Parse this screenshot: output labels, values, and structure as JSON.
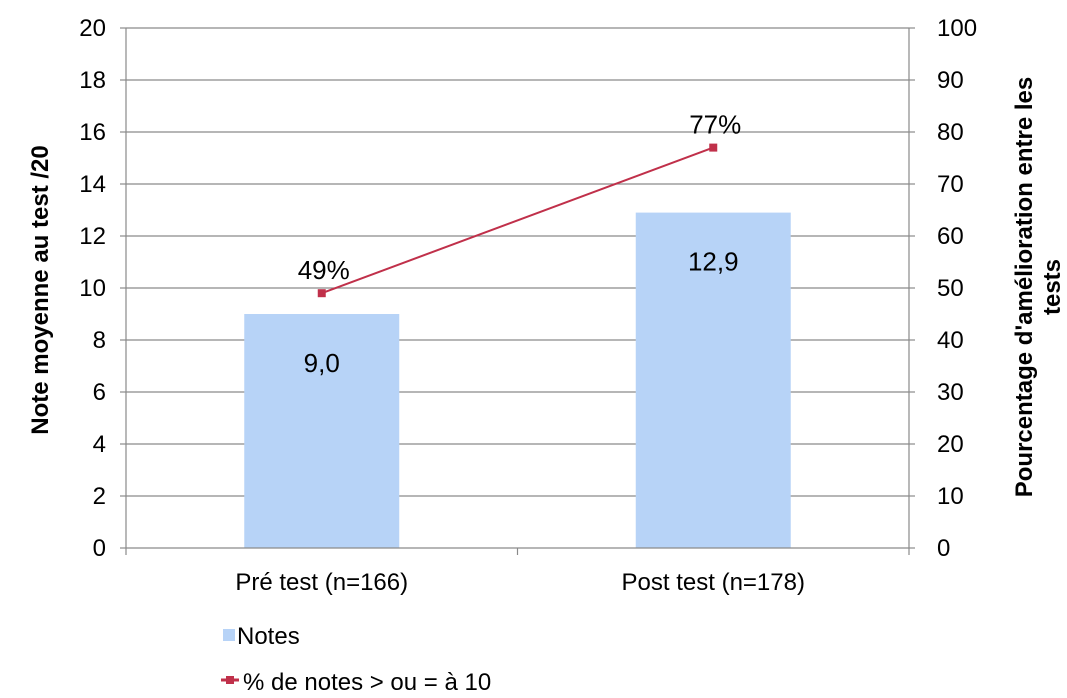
{
  "chart_data": {
    "type": "bar",
    "categories": [
      "Pré test (n=166)",
      "Post test (n=178)"
    ],
    "series": [
      {
        "name": "Notes",
        "type": "bar",
        "axis": "left",
        "values": [
          9.0,
          12.9
        ],
        "labels": [
          "9,0",
          "12,9"
        ],
        "color": "#b7d3f7"
      },
      {
        "name": "% de notes > ou = à 10",
        "type": "line",
        "axis": "right",
        "values": [
          49,
          77
        ],
        "labels": [
          "49%",
          "77%"
        ],
        "color": "#c0304a"
      }
    ],
    "ylabel_left": "Note moyenne au test /20",
    "ylabel_right": [
      "Pourcentage d'amélioration entre les",
      "tests"
    ],
    "ylim_left": [
      0,
      20
    ],
    "ylim_right": [
      0,
      100
    ],
    "yticks_left": [
      0,
      2,
      4,
      6,
      8,
      10,
      12,
      14,
      16,
      18,
      20
    ],
    "yticks_right": [
      0,
      10,
      20,
      30,
      40,
      50,
      60,
      70,
      80,
      90,
      100
    ],
    "grid": true,
    "legend_position": "bottom"
  }
}
